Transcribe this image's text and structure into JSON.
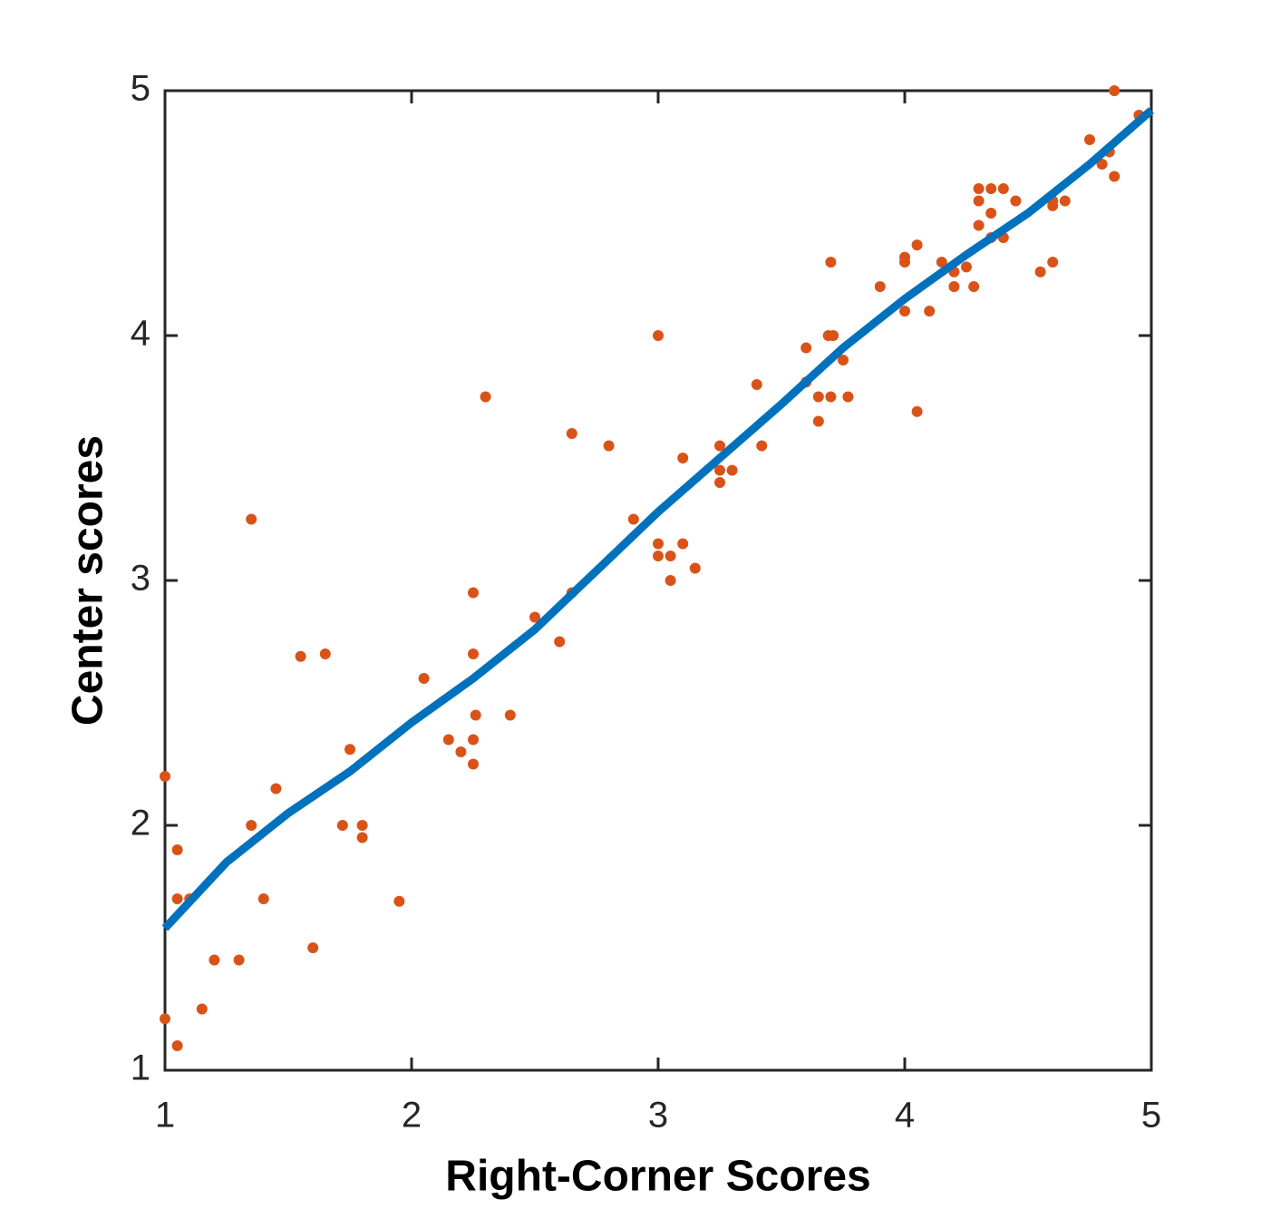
{
  "chart_data": {
    "type": "scatter",
    "xlabel": "Right-Corner Scores",
    "ylabel": "Center scores",
    "xlim": [
      1,
      5
    ],
    "ylim": [
      1,
      5
    ],
    "xticks": [
      1,
      2,
      3,
      4,
      5
    ],
    "yticks": [
      1,
      2,
      3,
      4,
      5
    ],
    "grid": false,
    "series": [
      {
        "type": "scatter",
        "color": "#d95319",
        "x": [
          1.0,
          1.05,
          1.05,
          1.1,
          1.0,
          1.05,
          1.15,
          1.2,
          1.3,
          1.35,
          1.35,
          1.4,
          1.45,
          1.55,
          1.6,
          1.65,
          1.72,
          1.75,
          1.8,
          1.8,
          1.95,
          2.05,
          2.15,
          2.2,
          2.25,
          2.25,
          2.25,
          2.25,
          2.26,
          2.3,
          2.4,
          2.5,
          2.6,
          2.65,
          2.65,
          2.8,
          2.9,
          3.0,
          3.0,
          3.0,
          3.05,
          3.05,
          3.1,
          3.1,
          3.15,
          3.25,
          3.25,
          3.25,
          3.3,
          3.4,
          3.42,
          3.6,
          3.6,
          3.65,
          3.65,
          3.69,
          3.71,
          3.7,
          3.7,
          3.75,
          3.77,
          3.9,
          4.0,
          4.0,
          4.0,
          4.05,
          4.05,
          4.1,
          4.15,
          4.2,
          4.2,
          4.25,
          4.28,
          4.3,
          4.3,
          4.3,
          4.35,
          4.35,
          4.35,
          4.4,
          4.4,
          4.45,
          4.55,
          4.6,
          4.6,
          4.6,
          4.65,
          4.75,
          4.8,
          4.83,
          4.85,
          4.85,
          4.95
        ],
        "y": [
          2.2,
          1.9,
          1.7,
          1.7,
          1.21,
          1.1,
          1.25,
          1.45,
          1.45,
          3.25,
          2.0,
          1.7,
          2.15,
          2.69,
          1.5,
          2.7,
          2.0,
          2.31,
          2.0,
          1.95,
          1.69,
          2.6,
          2.35,
          2.3,
          2.95,
          2.7,
          2.35,
          2.25,
          2.45,
          3.75,
          2.45,
          2.85,
          2.75,
          2.95,
          3.6,
          3.55,
          3.25,
          4.0,
          3.15,
          3.1,
          3.1,
          3.0,
          3.5,
          3.15,
          3.05,
          3.55,
          3.45,
          3.4,
          3.45,
          3.8,
          3.55,
          3.95,
          3.81,
          3.75,
          3.65,
          4.0,
          4.0,
          4.3,
          3.75,
          3.9,
          3.75,
          4.2,
          4.3,
          4.32,
          4.1,
          4.37,
          3.69,
          4.1,
          4.3,
          4.26,
          4.2,
          4.28,
          4.2,
          4.6,
          4.55,
          4.45,
          4.6,
          4.5,
          4.4,
          4.6,
          4.4,
          4.55,
          4.26,
          4.55,
          4.53,
          4.3,
          4.55,
          4.8,
          4.7,
          4.75,
          4.65,
          5.0,
          4.9
        ]
      },
      {
        "type": "line",
        "color": "#0072bd",
        "x": [
          1.0,
          1.25,
          1.5,
          1.75,
          2.0,
          2.25,
          2.5,
          2.75,
          3.0,
          3.25,
          3.5,
          3.75,
          4.0,
          4.25,
          4.5,
          4.75,
          5.0
        ],
        "y": [
          1.58,
          1.85,
          2.05,
          2.22,
          2.42,
          2.6,
          2.8,
          3.04,
          3.28,
          3.5,
          3.72,
          3.95,
          4.15,
          4.33,
          4.5,
          4.7,
          4.92
        ]
      }
    ]
  }
}
